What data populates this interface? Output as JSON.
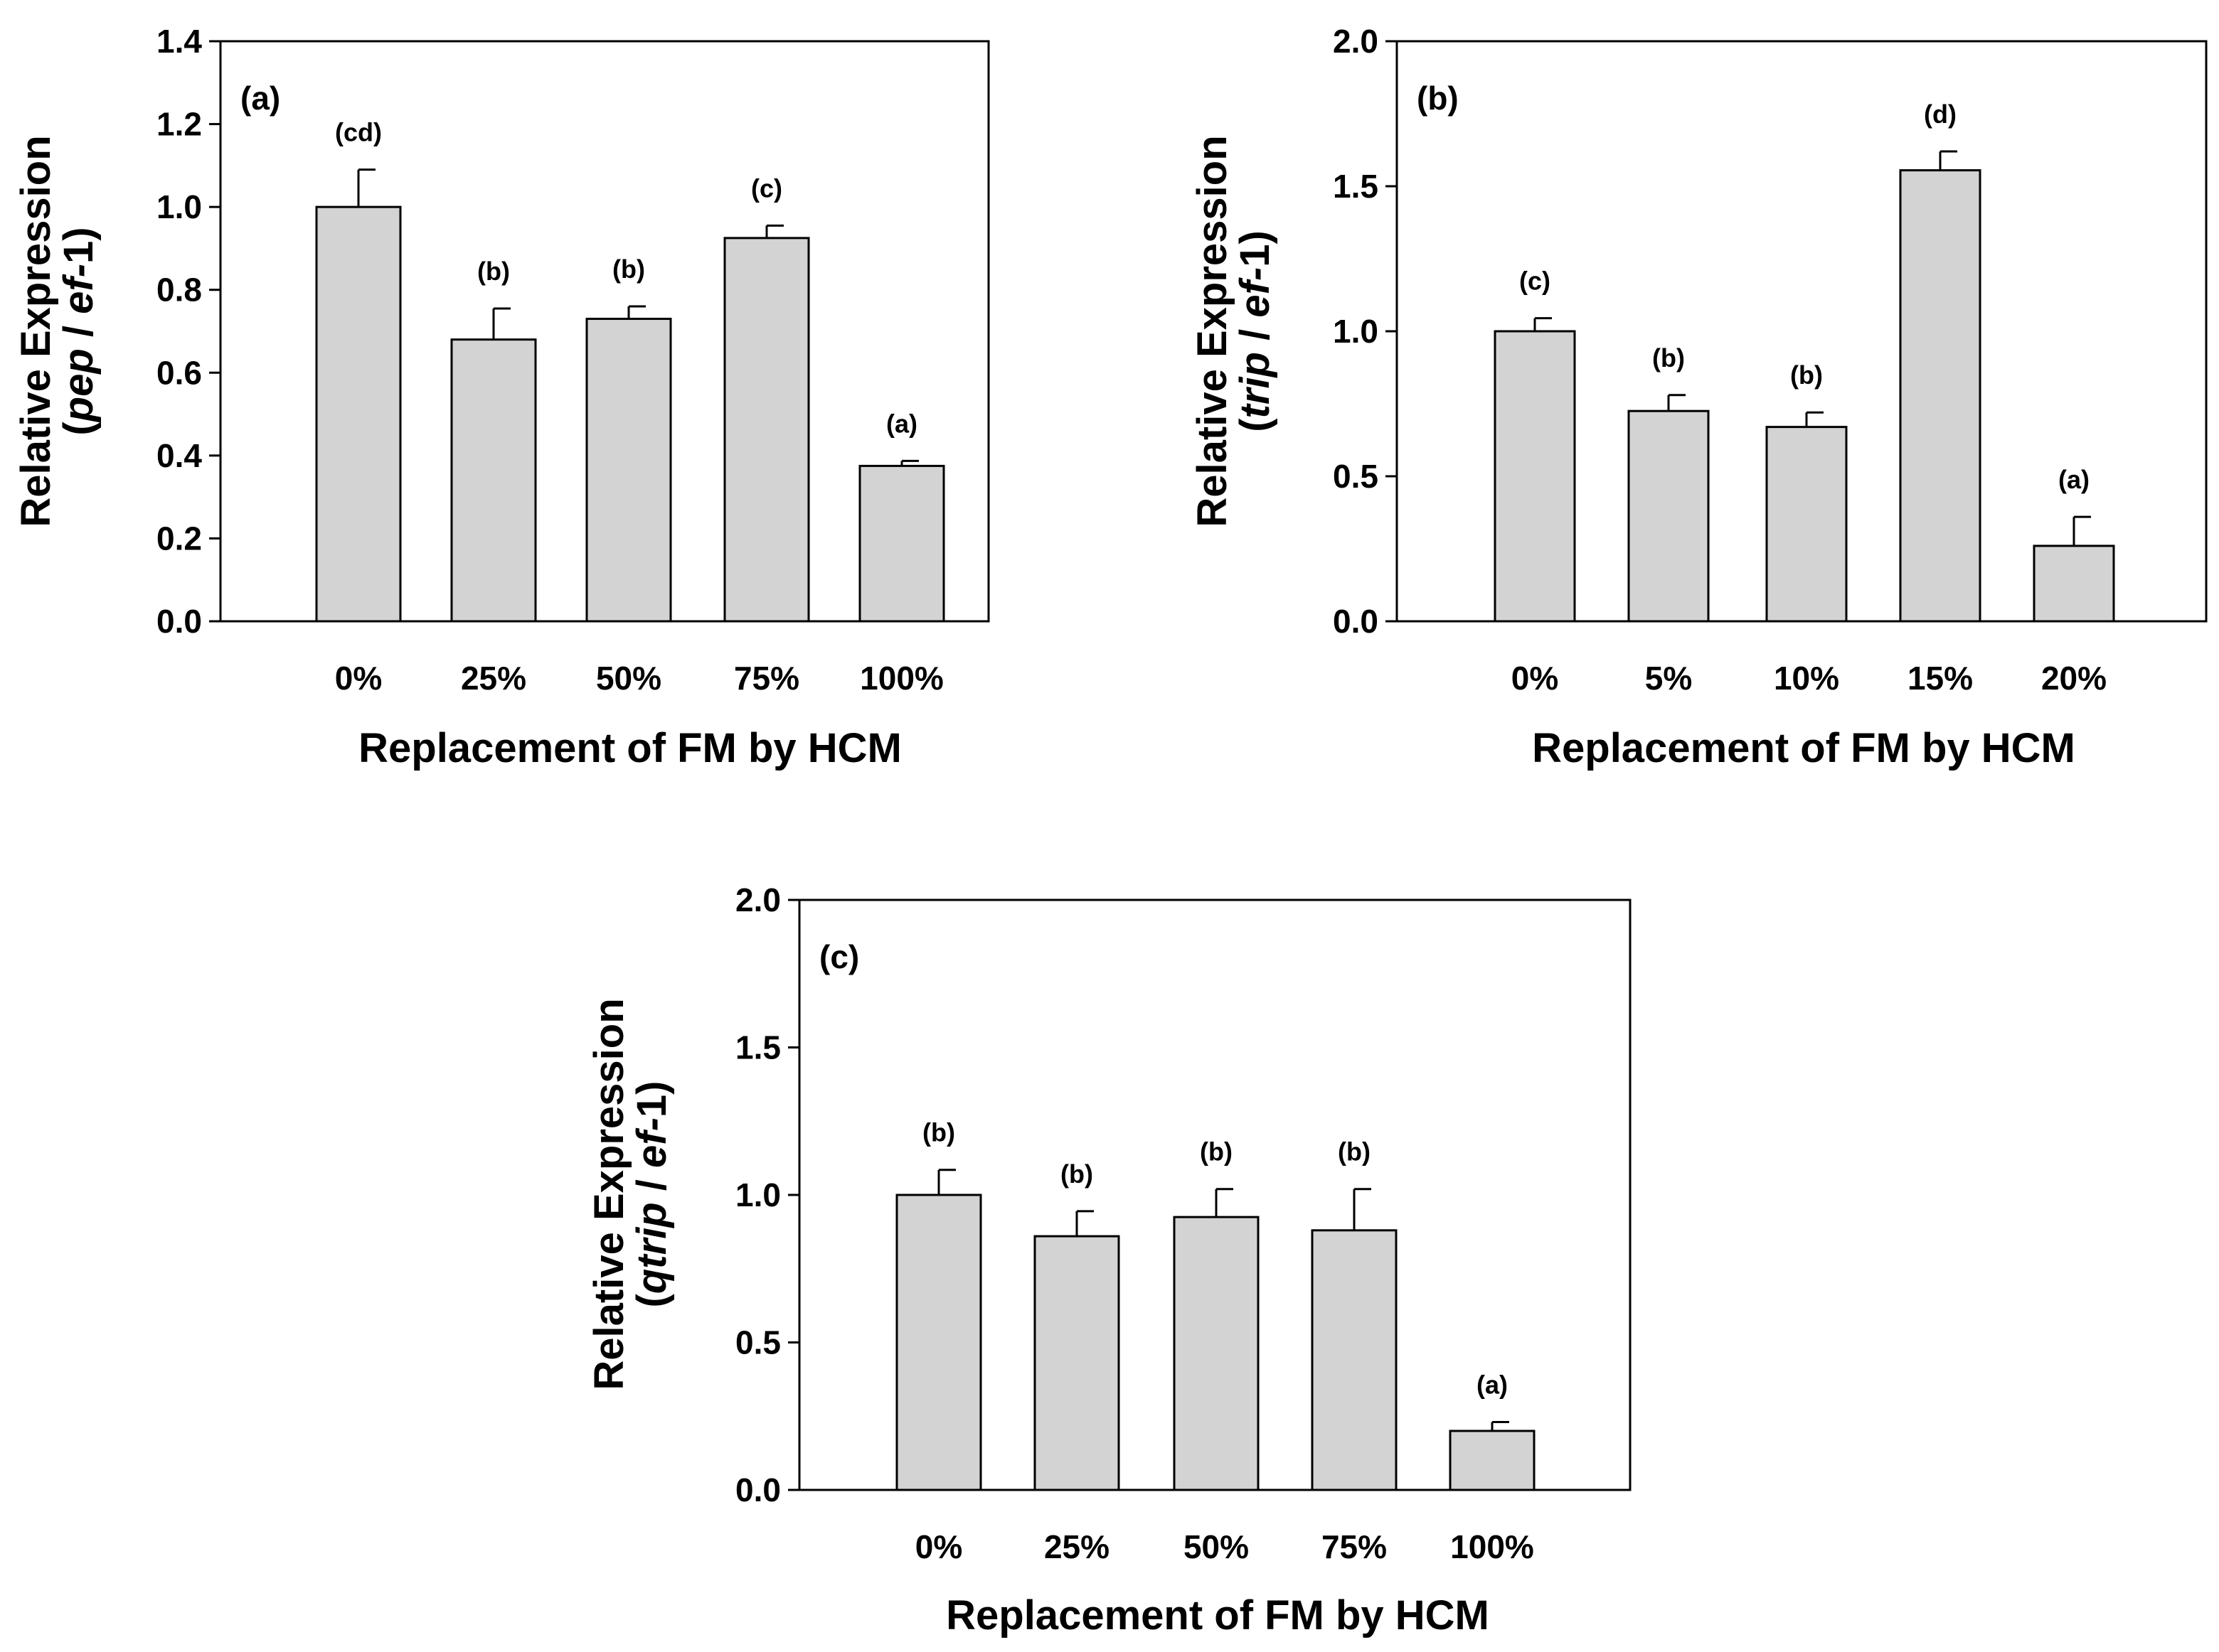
{
  "chart_data": [
    {
      "type": "bar",
      "panel_label": "(a)",
      "xlabel": "Replacement of FM by HCM",
      "ylabel_line1": "Relative Expression",
      "ylabel_line2": {
        "open": "(",
        "gene": "pep",
        "sep": " / ",
        "ref": "ef-",
        "num": "1",
        "close": ")"
      },
      "categories": [
        "0%",
        "25%",
        "50%",
        "75%",
        "100%"
      ],
      "values": [
        1.0,
        0.68,
        0.73,
        0.925,
        0.375
      ],
      "errors": [
        0.09,
        0.075,
        0.03,
        0.03,
        0.012
      ],
      "significance": [
        "(cd)",
        "(b)",
        "(b)",
        "(c)",
        "(a)"
      ],
      "ylim": [
        0,
        1.4
      ],
      "yticks": [
        0.0,
        0.2,
        0.4,
        0.6,
        0.8,
        1.0,
        1.2,
        1.4
      ],
      "ytick_labels": [
        "0.0",
        "0.2",
        "0.4",
        "0.6",
        "0.8",
        "1.0",
        "1.2",
        "1.4"
      ],
      "bar_color": "#d3d3d3"
    },
    {
      "type": "bar",
      "panel_label": "(b)",
      "xlabel": "Replacement of FM by HCM",
      "ylabel_line1": "Relative Expression",
      "ylabel_line2": {
        "open": "(",
        "gene": "trip",
        "sep": " / ",
        "ref": "ef-",
        "num": "1",
        "close": ")"
      },
      "categories": [
        "0%",
        "5%",
        "10%",
        "15%",
        "20%"
      ],
      "values": [
        1.0,
        0.725,
        0.67,
        1.555,
        0.26
      ],
      "errors": [
        0.045,
        0.055,
        0.05,
        0.065,
        0.1
      ],
      "significance": [
        "(c)",
        "(b)",
        "(b)",
        "(d)",
        "(a)"
      ],
      "ylim": [
        0,
        2.0
      ],
      "yticks": [
        0.0,
        0.5,
        1.0,
        1.5,
        2.0
      ],
      "ytick_labels": [
        "0.0",
        "0.5",
        "1.0",
        "1.5",
        "2.0"
      ],
      "bar_color": "#d3d3d3"
    },
    {
      "type": "bar",
      "panel_label": "(c)",
      "xlabel": "Replacement of FM by HCM",
      "ylabel_line1": "Relative Expression",
      "ylabel_line2": {
        "open": "(",
        "gene": "qtrip",
        "sep": " / ",
        "ref": "ef-",
        "num": "1",
        "close": ")"
      },
      "categories": [
        "0%",
        "25%",
        "50%",
        "75%",
        "100%"
      ],
      "values": [
        1.0,
        0.86,
        0.925,
        0.88,
        0.2
      ],
      "errors": [
        0.085,
        0.085,
        0.095,
        0.14,
        0.03
      ],
      "significance": [
        "(b)",
        "(b)",
        "(b)",
        "(b)",
        "(a)"
      ],
      "ylim": [
        0,
        2.0
      ],
      "yticks": [
        0.0,
        0.5,
        1.0,
        1.5,
        2.0
      ],
      "ytick_labels": [
        "0.0",
        "0.5",
        "1.0",
        "1.5",
        "2.0"
      ],
      "bar_color": "#d3d3d3"
    }
  ]
}
